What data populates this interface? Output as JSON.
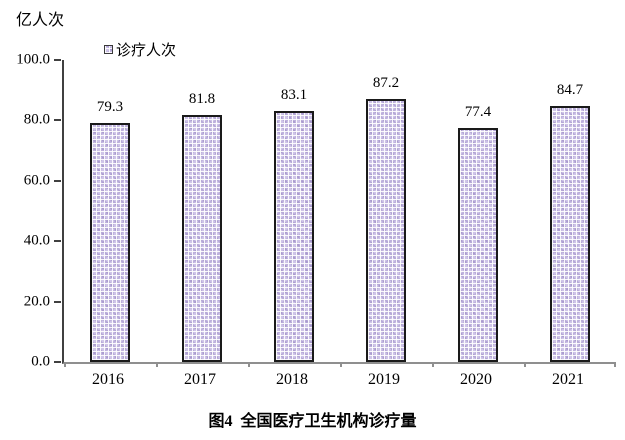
{
  "unit_label": "亿人次",
  "legend": {
    "label": "诊疗人次"
  },
  "caption": "图4  全国医疗卫生机构诊疗量",
  "chart_data": {
    "type": "bar",
    "title": "图4 全国医疗卫生机构诊疗量",
    "series_name": "诊疗人次",
    "ylabel": "亿人次",
    "categories": [
      "2016",
      "2017",
      "2018",
      "2019",
      "2020",
      "2021"
    ],
    "values": [
      79.3,
      81.8,
      83.1,
      87.2,
      77.4,
      84.7
    ],
    "value_labels": [
      "79.3",
      "81.8",
      "83.1",
      "87.2",
      "77.4",
      "84.7"
    ],
    "ylim": [
      0,
      100
    ],
    "yticks": [
      0,
      20,
      40,
      60,
      80,
      100
    ],
    "ytick_labels": [
      "0.0",
      "20.0",
      "40.0",
      "60.0",
      "80.0",
      "100.0"
    ],
    "grid": false,
    "legend_position": "top",
    "bar_fill_color": "#cfc5e8",
    "bar_border_color": "#1a1a1a",
    "axis_color": "#404040",
    "baseline_color": "#8f8f8f",
    "text_color": "#000000"
  }
}
